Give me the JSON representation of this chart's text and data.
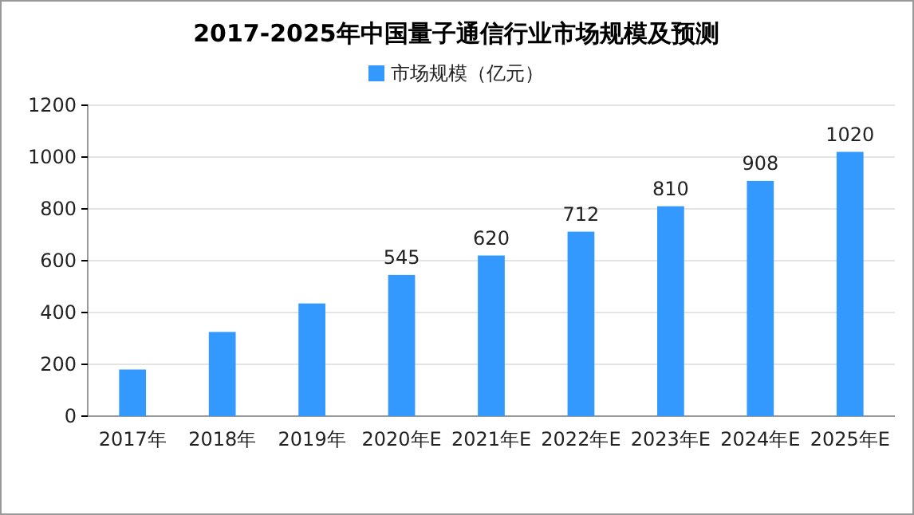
{
  "chart_data": {
    "type": "bar",
    "title": "2017-2025年中国量子通信行业市场规模及预测",
    "categories": [
      "2017年",
      "2018年",
      "2019年",
      "2020年E",
      "2021年E",
      "2022年E",
      "2023年E",
      "2024年E",
      "2025年E"
    ],
    "series": [
      {
        "name": "市场规模（亿元）",
        "color": "#3399ff",
        "values": [
          180,
          325,
          435,
          545,
          620,
          712,
          810,
          908,
          1020
        ],
        "value_labels": [
          null,
          null,
          null,
          "545",
          "620",
          "712",
          "810",
          "908",
          "1020"
        ]
      }
    ],
    "ylim": [
      0,
      1200
    ],
    "yticks": [
      0,
      200,
      400,
      600,
      800,
      1000,
      1200
    ],
    "grid": "y",
    "legend": "top"
  }
}
